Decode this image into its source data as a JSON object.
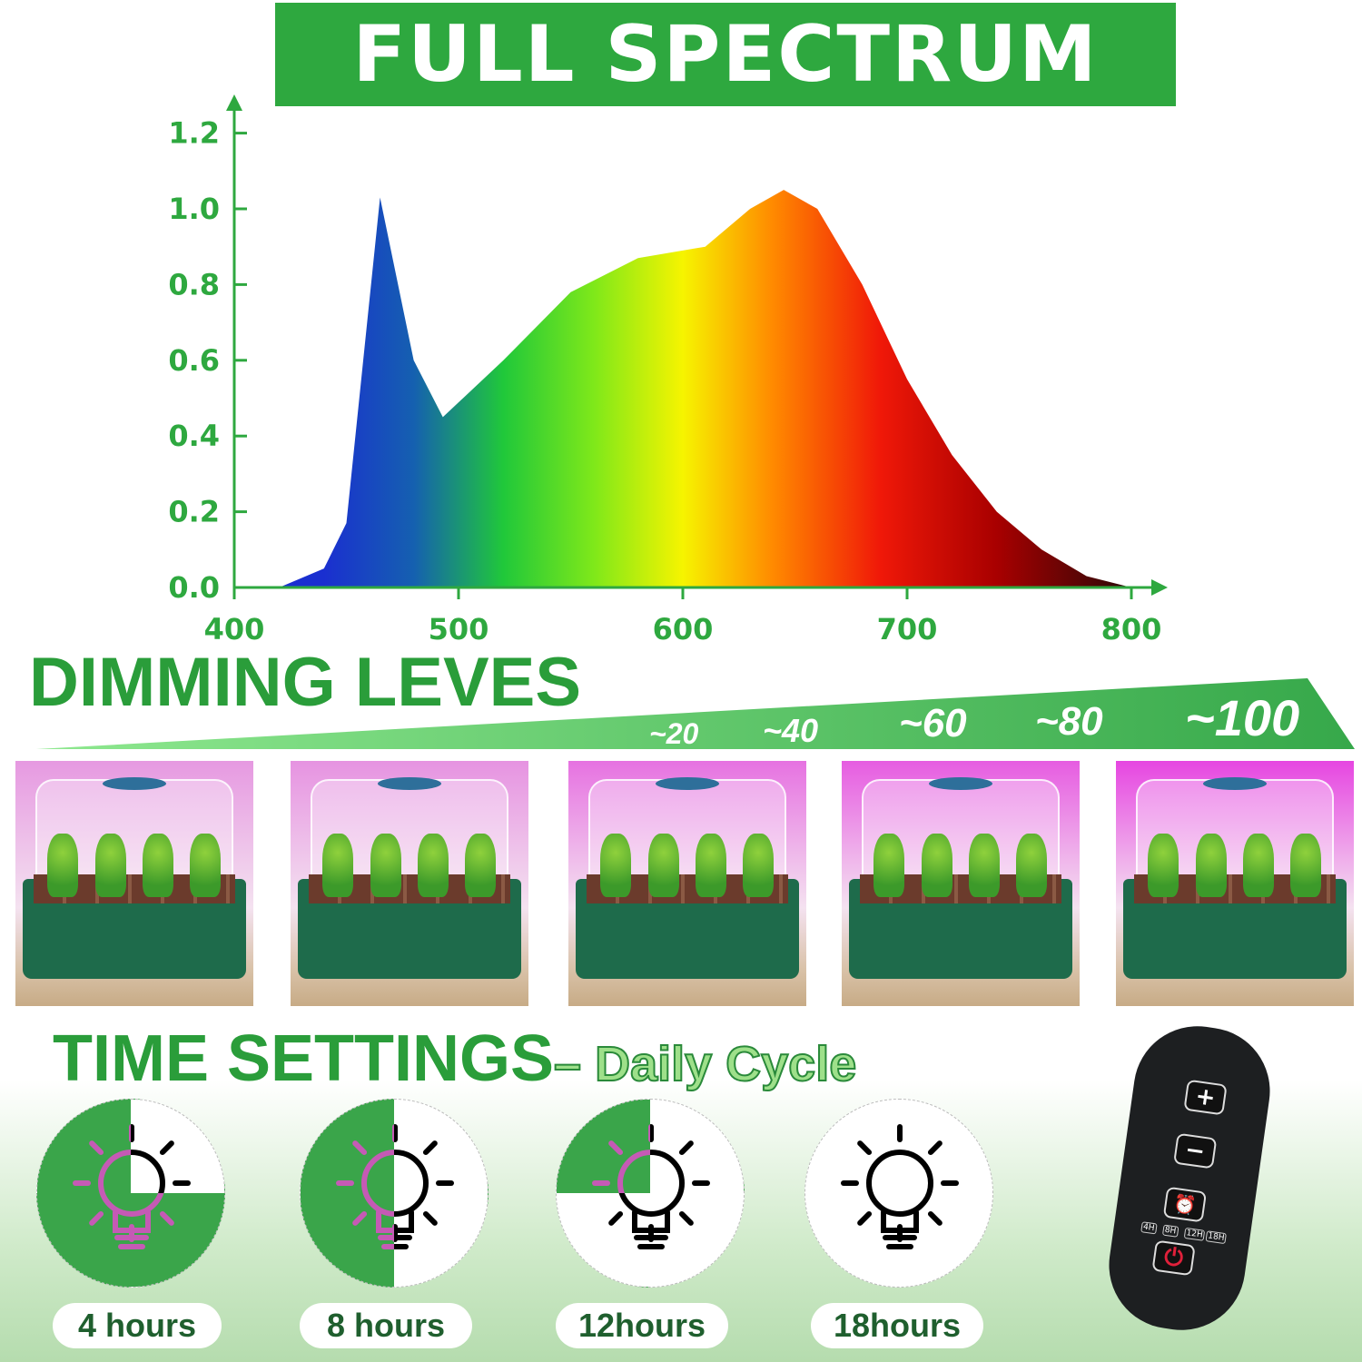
{
  "banner": {
    "title": "FULL SPECTRUM"
  },
  "chart_data": {
    "type": "area",
    "xlim": [
      400,
      800
    ],
    "ylim": [
      0,
      1.2
    ],
    "x_ticks": [
      "400",
      "500",
      "600",
      "700",
      "800"
    ],
    "y_ticks": [
      "0.0",
      "0.2",
      "0.4",
      "0.6",
      "0.8",
      "1.0",
      "1.2"
    ],
    "x": [
      420,
      440,
      450,
      465,
      480,
      493,
      520,
      550,
      580,
      610,
      630,
      645,
      660,
      680,
      700,
      720,
      740,
      760,
      780,
      800
    ],
    "values": [
      0,
      0.05,
      0.17,
      1.03,
      0.6,
      0.45,
      0.6,
      0.78,
      0.87,
      0.9,
      1.0,
      1.05,
      1.0,
      0.8,
      0.55,
      0.35,
      0.2,
      0.1,
      0.03,
      0
    ],
    "axis_color": "#2ea83f"
  },
  "dimming": {
    "title": "DIMMING LEVES",
    "levels": [
      "~20",
      "~40",
      "~60",
      "~80",
      "~100"
    ]
  },
  "time": {
    "title": "TIME SETTINGS",
    "subtitle": "– Daily Cycle",
    "options": [
      {
        "label": "4 hours",
        "green_fraction": 0.75
      },
      {
        "label": "8 hours",
        "green_fraction": 0.5
      },
      {
        "label": "12hours",
        "green_fraction": 0.25
      },
      {
        "label": "18hours",
        "green_fraction": 0
      }
    ]
  },
  "remote": {
    "plus": "+",
    "minus": "−",
    "timer_labels": [
      "4H",
      "8H",
      "12H",
      "18H"
    ]
  },
  "colors": {
    "green": "#2ea83f",
    "light_green": "#6fd67a"
  }
}
